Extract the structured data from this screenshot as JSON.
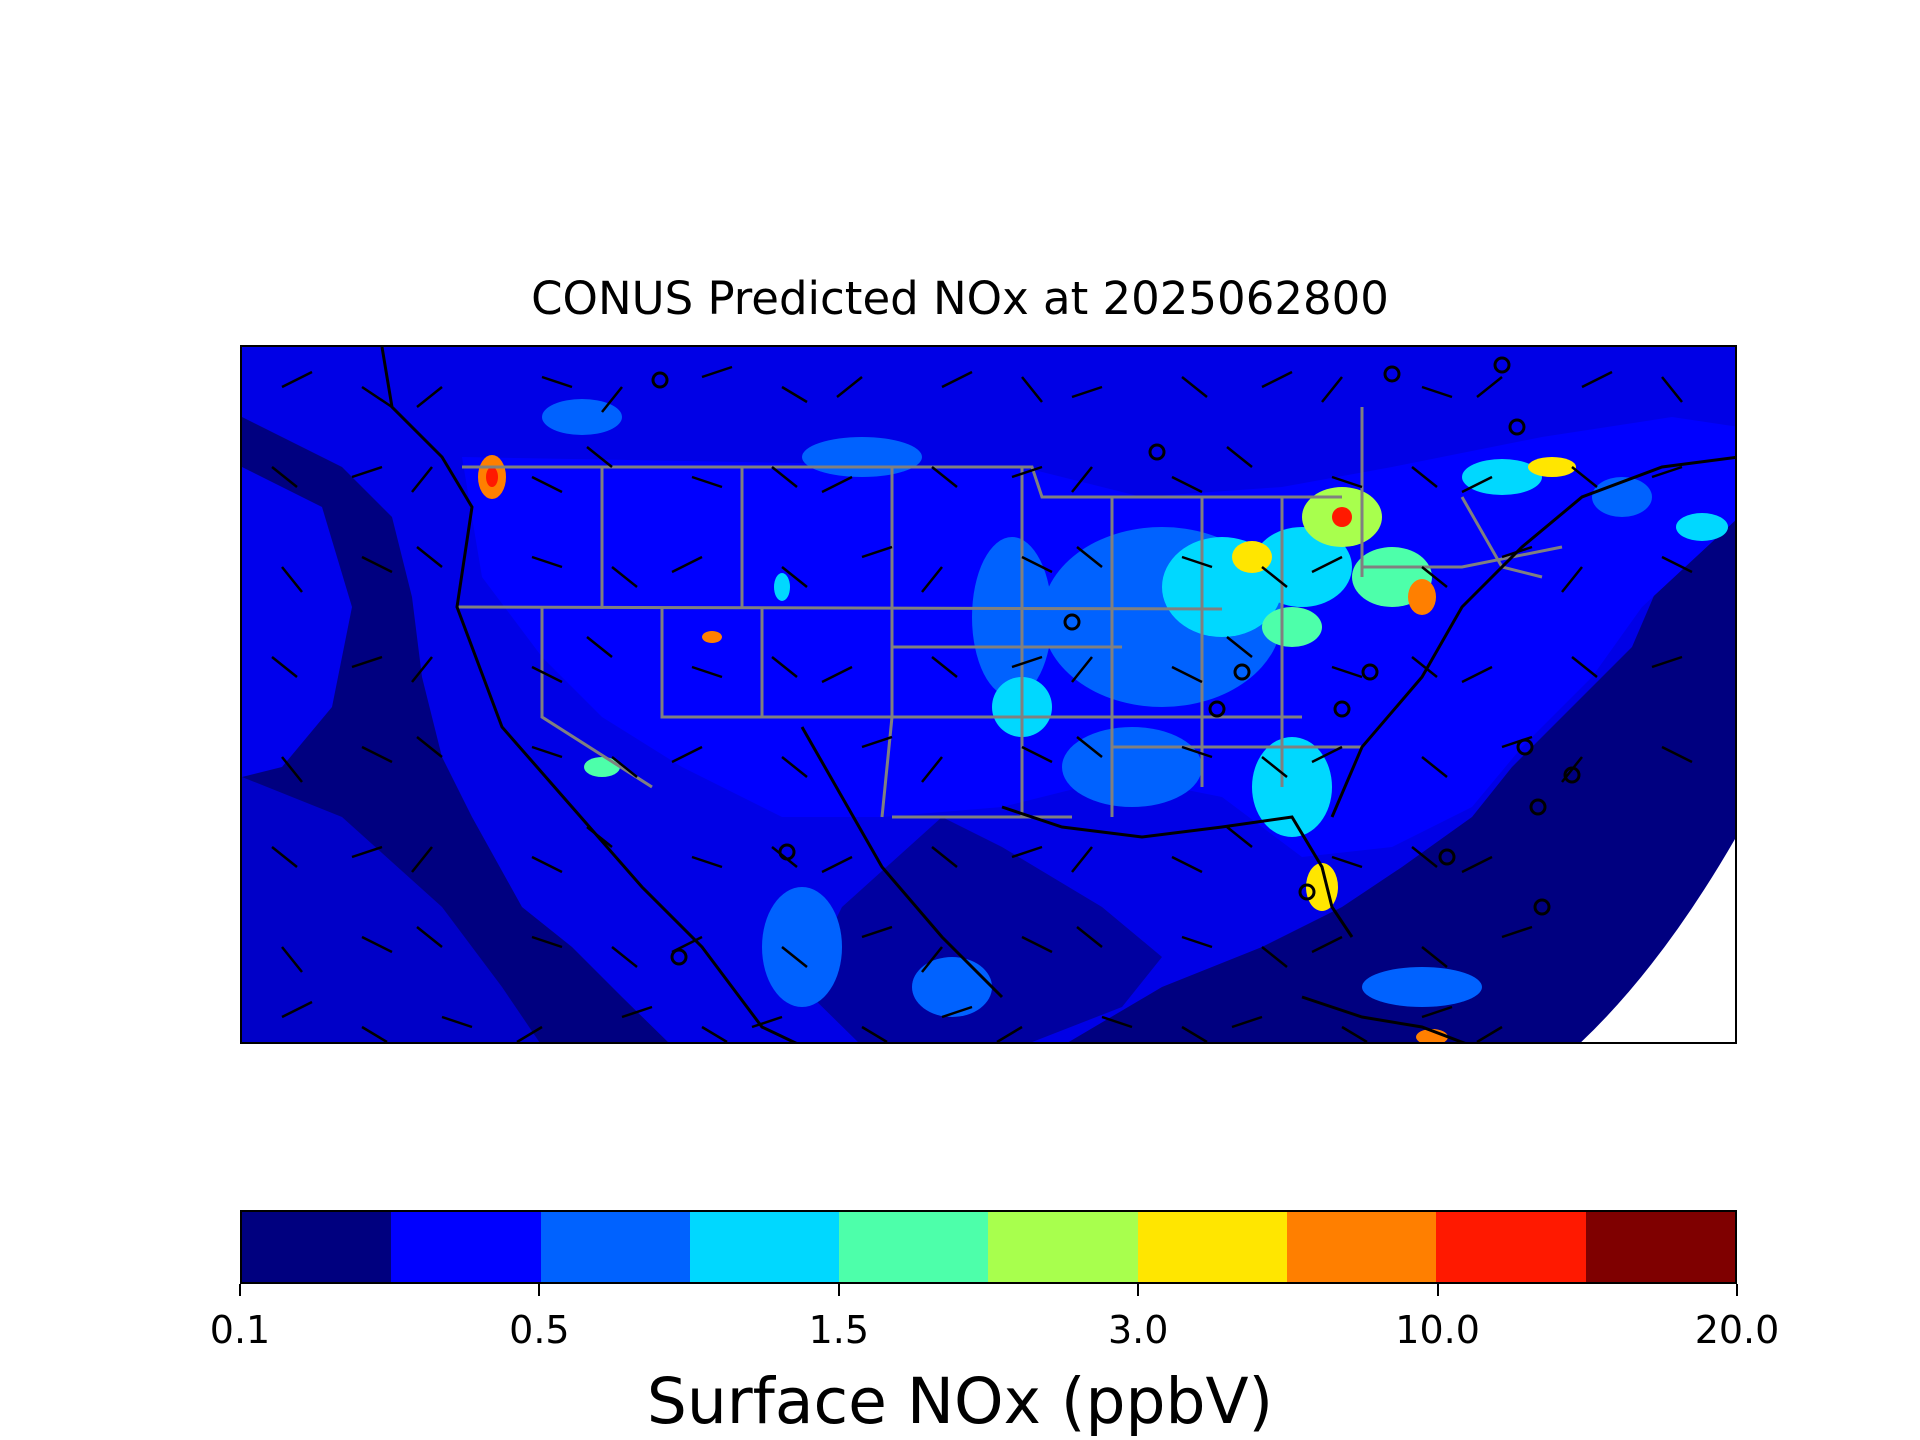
{
  "title": "CONUS Predicted NOx at 2025062800",
  "map": {
    "domain": "CONUS",
    "variable": "Surface NOx",
    "overlays": [
      "state-borders",
      "coastlines",
      "wind-barbs"
    ],
    "background_color": "#000080",
    "no_data_color": "#ffffff",
    "border_color": "#808080"
  },
  "colorbar": {
    "label": "Surface NOx (ppbV)",
    "colors": [
      "#00007f",
      "#0000ff",
      "#0062ff",
      "#00d8ff",
      "#4dffaa",
      "#a8ff4d",
      "#ffe600",
      "#ff7f00",
      "#ff1900",
      "#7f0000"
    ],
    "tick_labels": [
      "0.1",
      "0.5",
      "1.5",
      "3.0",
      "10.0",
      "20.0"
    ],
    "tick_boundary_index": [
      0,
      2,
      4,
      6,
      8,
      10
    ]
  }
}
